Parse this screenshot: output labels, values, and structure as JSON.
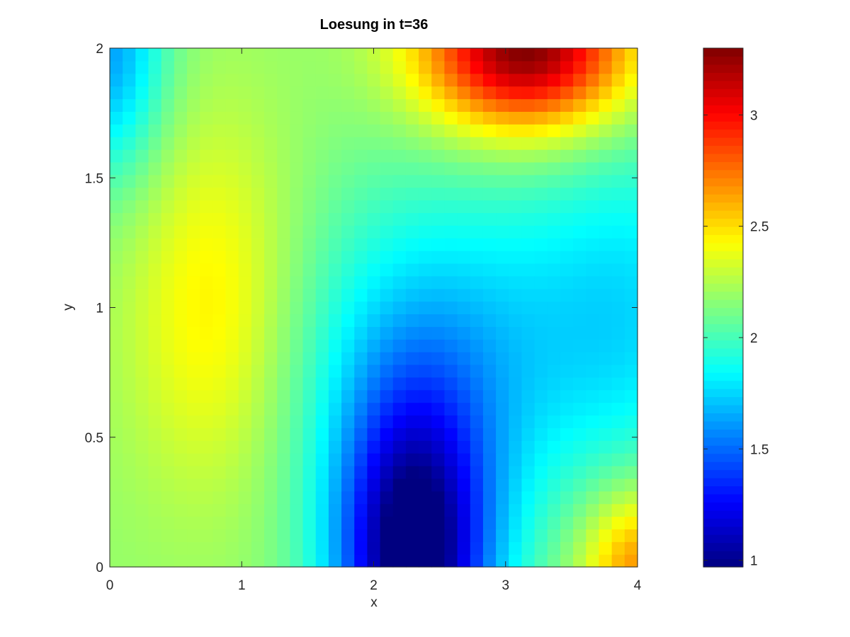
{
  "chart_data": {
    "type": "heatmap",
    "title": "Loesung in t=36",
    "xlabel": "x",
    "ylabel": "y",
    "xlim": [
      0,
      4
    ],
    "ylim": [
      0,
      2
    ],
    "x_ticks": [
      "0",
      "1",
      "2",
      "3",
      "4"
    ],
    "y_ticks": [
      "0",
      "0.5",
      "1",
      "1.5",
      "2"
    ],
    "colormap": "jet",
    "grid": false,
    "colorbar": {
      "location": "right",
      "clim": [
        0.97,
        3.3
      ],
      "ticks": [
        "1",
        "1.5",
        "2",
        "2.5",
        "3"
      ]
    },
    "grid_size": {
      "nx": 41,
      "ny": 41
    },
    "field_description": "approximate solution u(x,y); low near (2.3,0), high near (3.1,2), ridge ~2.45 near (0.85,1.0)",
    "features": [
      {
        "x": 3.1,
        "y": 2.0,
        "value": 3.3
      },
      {
        "x": 2.3,
        "y": 0.0,
        "value": 0.98
      },
      {
        "x": 0.85,
        "y": 1.0,
        "value": 2.45
      },
      {
        "x": 0.0,
        "y": 2.0,
        "value": 1.6
      },
      {
        "x": 4.0,
        "y": 0.05,
        "value": 2.6
      },
      {
        "x": 4.0,
        "y": 1.0,
        "value": 1.85
      },
      {
        "x": 0.0,
        "y": 0.6,
        "value": 2.4
      }
    ]
  }
}
